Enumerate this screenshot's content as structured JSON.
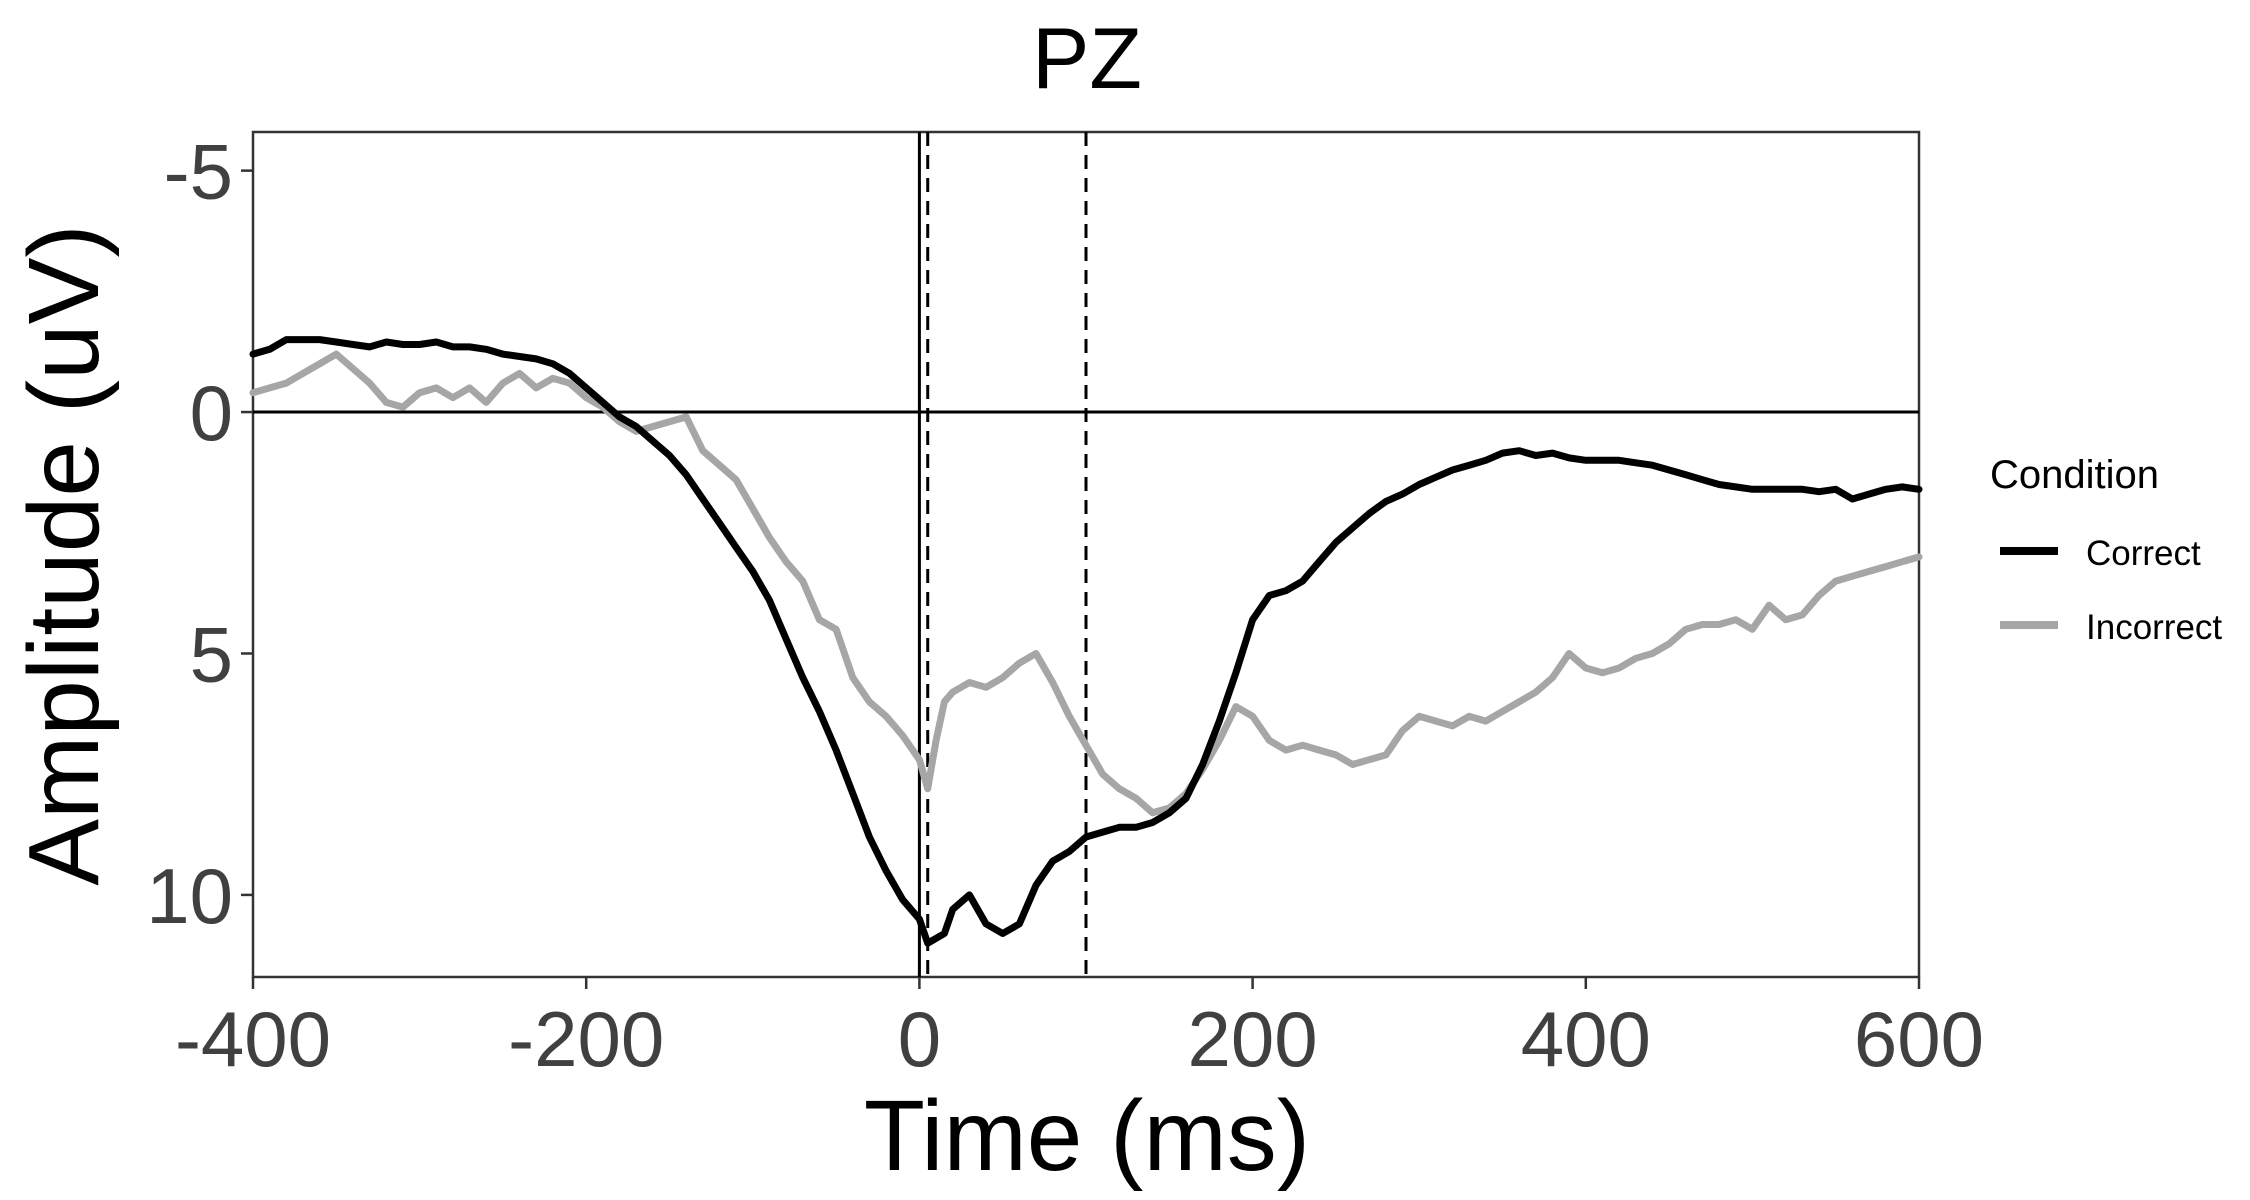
{
  "chart_data": {
    "type": "line",
    "title": "PZ",
    "xlabel": "Time (ms)",
    "ylabel": "Amplitude (uV)",
    "xlim": [
      -400,
      600
    ],
    "ylim": [
      11.7,
      -5.8
    ],
    "y_reversed": true,
    "xticks": [
      -400,
      -200,
      0,
      200,
      400,
      600
    ],
    "xtick_labels": [
      "-400",
      "-200",
      "0",
      "200",
      "400",
      "600"
    ],
    "yticks": [
      -5,
      0,
      5,
      10
    ],
    "ytick_labels": [
      "-5",
      "0",
      "5",
      "10"
    ],
    "grid": false,
    "reference_lines": [
      {
        "axis": "x",
        "value": 0,
        "style": "solid"
      },
      {
        "axis": "y",
        "value": 0,
        "style": "solid"
      },
      {
        "axis": "x",
        "value": 5,
        "style": "dashed"
      },
      {
        "axis": "x",
        "value": 100,
        "style": "dashed"
      }
    ],
    "legend": {
      "title": "Condition",
      "position": "right"
    },
    "series": [
      {
        "name": "Correct",
        "color": "#000000",
        "x": [
          -400,
          -390,
          -380,
          -370,
          -360,
          -350,
          -340,
          -330,
          -320,
          -310,
          -300,
          -290,
          -280,
          -270,
          -260,
          -250,
          -240,
          -230,
          -220,
          -210,
          -200,
          -190,
          -180,
          -170,
          -160,
          -150,
          -140,
          -130,
          -120,
          -110,
          -100,
          -90,
          -80,
          -70,
          -60,
          -50,
          -40,
          -30,
          -20,
          -10,
          0,
          5,
          15,
          20,
          30,
          40,
          50,
          60,
          70,
          80,
          90,
          100,
          110,
          120,
          130,
          140,
          150,
          160,
          170,
          180,
          190,
          200,
          210,
          220,
          230,
          240,
          250,
          260,
          270,
          280,
          290,
          300,
          310,
          320,
          330,
          340,
          350,
          360,
          370,
          380,
          390,
          400,
          410,
          420,
          430,
          440,
          450,
          460,
          470,
          480,
          490,
          500,
          510,
          520,
          530,
          540,
          550,
          560,
          570,
          580,
          590,
          600
        ],
        "values": [
          -1.2,
          -1.3,
          -1.5,
          -1.5,
          -1.5,
          -1.45,
          -1.4,
          -1.35,
          -1.45,
          -1.4,
          -1.4,
          -1.45,
          -1.35,
          -1.35,
          -1.3,
          -1.2,
          -1.15,
          -1.1,
          -1.0,
          -0.8,
          -0.5,
          -0.2,
          0.1,
          0.3,
          0.6,
          0.9,
          1.3,
          1.8,
          2.3,
          2.8,
          3.3,
          3.9,
          4.7,
          5.5,
          6.2,
          7.0,
          7.9,
          8.8,
          9.5,
          10.1,
          10.5,
          11.0,
          10.8,
          10.3,
          10.0,
          10.6,
          10.8,
          10.6,
          9.8,
          9.3,
          9.1,
          8.8,
          8.7,
          8.6,
          8.6,
          8.5,
          8.3,
          8.0,
          7.3,
          6.4,
          5.4,
          4.3,
          3.8,
          3.7,
          3.5,
          3.1,
          2.7,
          2.4,
          2.1,
          1.85,
          1.7,
          1.5,
          1.35,
          1.2,
          1.1,
          1.0,
          0.85,
          0.8,
          0.9,
          0.85,
          0.95,
          1.0,
          1.0,
          1.0,
          1.05,
          1.1,
          1.2,
          1.3,
          1.4,
          1.5,
          1.55,
          1.6,
          1.6,
          1.6,
          1.6,
          1.65,
          1.6,
          1.8,
          1.7,
          1.6,
          1.55,
          1.6
        ]
      },
      {
        "name": "Incorrect",
        "color": "#a6a6a6",
        "x": [
          -400,
          -390,
          -380,
          -370,
          -360,
          -350,
          -340,
          -330,
          -320,
          -310,
          -300,
          -290,
          -280,
          -270,
          -260,
          -250,
          -240,
          -230,
          -220,
          -210,
          -200,
          -190,
          -180,
          -170,
          -160,
          -150,
          -140,
          -130,
          -120,
          -110,
          -100,
          -90,
          -80,
          -70,
          -60,
          -50,
          -40,
          -30,
          -20,
          -10,
          0,
          5,
          10,
          15,
          20,
          30,
          40,
          50,
          60,
          70,
          80,
          90,
          100,
          110,
          120,
          130,
          140,
          150,
          160,
          170,
          180,
          190,
          200,
          210,
          220,
          230,
          240,
          250,
          260,
          270,
          280,
          290,
          300,
          310,
          320,
          330,
          340,
          350,
          360,
          370,
          380,
          390,
          400,
          410,
          420,
          430,
          440,
          450,
          460,
          470,
          480,
          490,
          500,
          510,
          520,
          530,
          540,
          550,
          560,
          570,
          580,
          590,
          600
        ],
        "values": [
          -0.4,
          -0.5,
          -0.6,
          -0.8,
          -1.0,
          -1.2,
          -0.9,
          -0.6,
          -0.2,
          -0.1,
          -0.4,
          -0.5,
          -0.3,
          -0.5,
          -0.2,
          -0.6,
          -0.8,
          -0.5,
          -0.7,
          -0.6,
          -0.3,
          -0.1,
          0.2,
          0.4,
          0.3,
          0.2,
          0.1,
          0.8,
          1.1,
          1.4,
          2.0,
          2.6,
          3.1,
          3.5,
          4.3,
          4.5,
          5.5,
          6.0,
          6.3,
          6.7,
          7.2,
          7.8,
          6.8,
          6.0,
          5.8,
          5.6,
          5.7,
          5.5,
          5.2,
          5.0,
          5.6,
          6.3,
          6.9,
          7.5,
          7.8,
          8.0,
          8.3,
          8.2,
          7.9,
          7.4,
          6.8,
          6.1,
          6.3,
          6.8,
          7.0,
          6.9,
          7.0,
          7.1,
          7.3,
          7.2,
          7.1,
          6.6,
          6.3,
          6.4,
          6.5,
          6.3,
          6.4,
          6.2,
          6.0,
          5.8,
          5.5,
          5.0,
          5.3,
          5.4,
          5.3,
          5.1,
          5.0,
          4.8,
          4.5,
          4.4,
          4.4,
          4.3,
          4.5,
          4.0,
          4.3,
          4.2,
          3.8,
          3.5,
          3.4,
          3.3,
          3.2,
          3.1,
          3.0
        ]
      }
    ]
  }
}
